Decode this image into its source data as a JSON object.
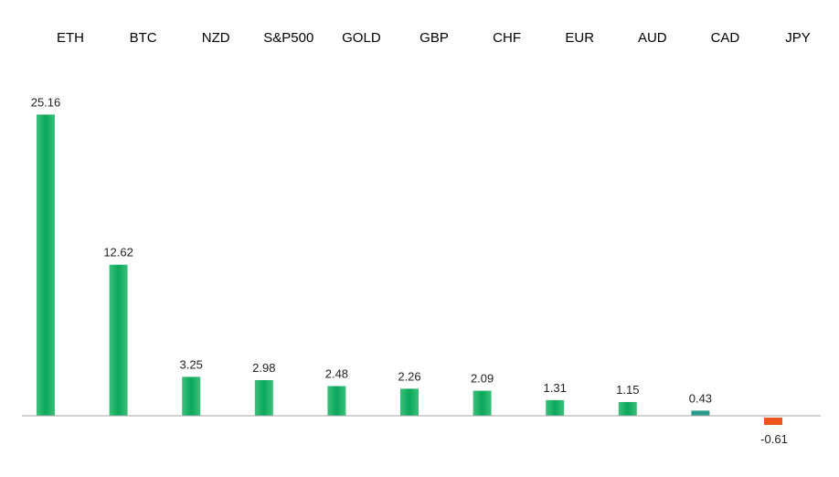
{
  "chart_data": {
    "type": "bar",
    "title": "",
    "xlabel": "",
    "ylabel": "",
    "categories": [
      "ETH",
      "BTC",
      "NZD",
      "S&P500",
      "GOLD",
      "GBP",
      "CHF",
      "EUR",
      "AUD",
      "CAD",
      "JPY"
    ],
    "values": [
      25.16,
      12.62,
      3.25,
      2.98,
      2.48,
      2.26,
      2.09,
      1.31,
      1.15,
      0.43,
      -0.61
    ],
    "value_labels": [
      "25.16",
      "12.62",
      "3.25",
      "2.98",
      "2.48",
      "2.26",
      "2.09",
      "1.31",
      "1.15",
      "0.43",
      "-0.61"
    ],
    "category_label_position": "top",
    "grid": false,
    "legend": "none",
    "colors": {
      "positive": "#0aa85a",
      "positive_gradient_light": "#3cc07a",
      "negative": "#f0541e",
      "cad_bar": "#2a9d8f",
      "axis": "#a6a6a6"
    }
  }
}
